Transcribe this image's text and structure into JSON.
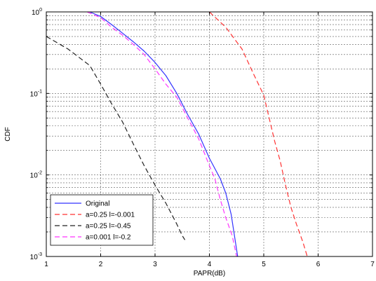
{
  "chart_data": {
    "type": "line",
    "title": "",
    "xlabel": "PAPR(dB)",
    "ylabel": "CDF",
    "xlim": [
      1,
      7
    ],
    "ylim": [
      0.001,
      1
    ],
    "yscale": "log",
    "x_ticks": [
      "1",
      "2",
      "3",
      "4",
      "5",
      "6",
      "7"
    ],
    "y_ticks": [
      {
        "base": "10",
        "exp": "0",
        "value": 1
      },
      {
        "base": "10",
        "exp": "-1",
        "value": 0.1
      },
      {
        "base": "10",
        "exp": "-2",
        "value": 0.01
      },
      {
        "base": "10",
        "exp": "-3",
        "value": 0.001
      }
    ],
    "grid": true,
    "legend_position": "bottom-left",
    "series": [
      {
        "name": "Original",
        "color": "#3333ff",
        "dash": "solid",
        "points": [
          [
            1.8,
            1.0
          ],
          [
            2.0,
            0.88
          ],
          [
            2.2,
            0.7
          ],
          [
            2.4,
            0.55
          ],
          [
            2.6,
            0.43
          ],
          [
            2.8,
            0.33
          ],
          [
            3.0,
            0.24
          ],
          [
            3.2,
            0.165
          ],
          [
            3.4,
            0.1
          ],
          [
            3.6,
            0.055
          ],
          [
            3.8,
            0.032
          ],
          [
            4.0,
            0.016
          ],
          [
            4.2,
            0.009
          ],
          [
            4.3,
            0.006
          ],
          [
            4.4,
            0.0033
          ],
          [
            4.45,
            0.002
          ],
          [
            4.52,
            0.001
          ]
        ]
      },
      {
        "name": "a=0.25 l=-0.001",
        "color": "#ff3333",
        "dash": "dashed",
        "points": [
          [
            4.0,
            1.0
          ],
          [
            4.3,
            0.65
          ],
          [
            4.6,
            0.35
          ],
          [
            4.8,
            0.18
          ],
          [
            5.0,
            0.095
          ],
          [
            5.1,
            0.05
          ],
          [
            5.2,
            0.026
          ],
          [
            5.3,
            0.015
          ],
          [
            5.4,
            0.0075
          ],
          [
            5.5,
            0.004
          ],
          [
            5.6,
            0.0025
          ],
          [
            5.72,
            0.0015
          ],
          [
            5.8,
            0.001
          ]
        ]
      },
      {
        "name": "a=0.25 l=-0.45",
        "color": "#222222",
        "dash": "dashed",
        "points": [
          [
            1.0,
            0.5
          ],
          [
            1.4,
            0.35
          ],
          [
            1.8,
            0.22
          ],
          [
            2.0,
            0.13
          ],
          [
            2.2,
            0.075
          ],
          [
            2.4,
            0.045
          ],
          [
            2.6,
            0.024
          ],
          [
            2.8,
            0.013
          ],
          [
            3.0,
            0.0075
          ],
          [
            3.2,
            0.0045
          ],
          [
            3.4,
            0.0025
          ],
          [
            3.5,
            0.0018
          ],
          [
            3.55,
            0.0016
          ]
        ]
      },
      {
        "name": "a=0.001 l=-0.2",
        "color": "#ff33ff",
        "dash": "dashed",
        "points": [
          [
            1.75,
            1.0
          ],
          [
            2.0,
            0.85
          ],
          [
            2.2,
            0.65
          ],
          [
            2.4,
            0.52
          ],
          [
            2.6,
            0.4
          ],
          [
            2.8,
            0.3
          ],
          [
            3.0,
            0.2
          ],
          [
            3.2,
            0.13
          ],
          [
            3.4,
            0.09
          ],
          [
            3.6,
            0.05
          ],
          [
            3.8,
            0.028
          ],
          [
            4.0,
            0.013
          ],
          [
            4.1,
            0.009
          ],
          [
            4.2,
            0.005
          ],
          [
            4.3,
            0.003
          ],
          [
            4.42,
            0.0018
          ],
          [
            4.5,
            0.001
          ]
        ]
      }
    ]
  }
}
